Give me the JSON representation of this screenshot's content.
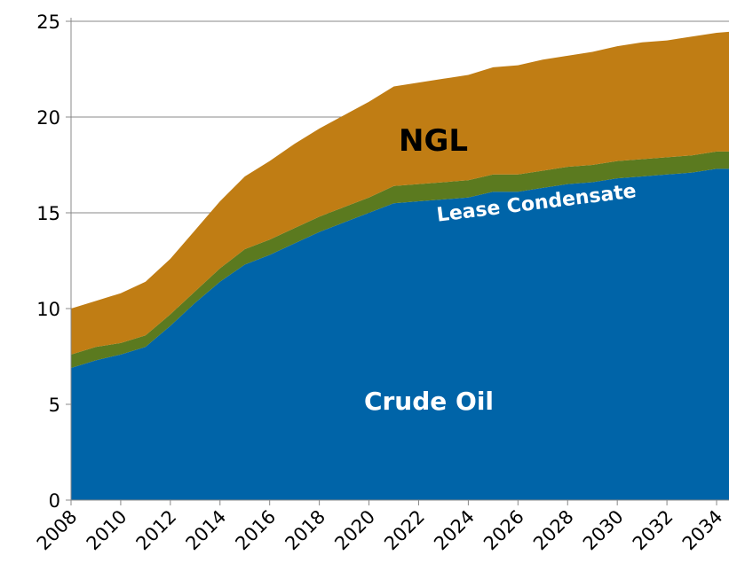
{
  "chart_data": {
    "type": "stacked_area",
    "x": [
      2008,
      2009,
      2010,
      2011,
      2012,
      2013,
      2014,
      2015,
      2016,
      2017,
      2018,
      2019,
      2020,
      2021,
      2022,
      2023,
      2024,
      2025,
      2026,
      2027,
      2028,
      2029,
      2030,
      2031,
      2032,
      2033,
      2034,
      2035
    ],
    "series": [
      {
        "name": "Crude Oil",
        "color": "#0064a8",
        "values": [
          6.9,
          7.3,
          7.6,
          8.0,
          9.1,
          10.3,
          11.4,
          12.3,
          12.8,
          13.4,
          14.0,
          14.5,
          15.0,
          15.5,
          15.6,
          15.7,
          15.8,
          16.1,
          16.1,
          16.3,
          16.5,
          16.6,
          16.8,
          16.9,
          17.0,
          17.1,
          17.3,
          17.3
        ]
      },
      {
        "name": "Lease Condensate",
        "color": "#5b7a1f",
        "values": [
          0.7,
          0.7,
          0.6,
          0.6,
          0.6,
          0.6,
          0.7,
          0.8,
          0.8,
          0.8,
          0.8,
          0.8,
          0.8,
          0.9,
          0.9,
          0.9,
          0.9,
          0.9,
          0.9,
          0.9,
          0.9,
          0.9,
          0.9,
          0.9,
          0.9,
          0.9,
          0.9,
          0.9
        ]
      },
      {
        "name": "NGL",
        "color": "#c07d14",
        "values": [
          2.4,
          2.4,
          2.6,
          2.8,
          2.9,
          3.2,
          3.5,
          3.8,
          4.1,
          4.4,
          4.6,
          4.8,
          5.0,
          5.2,
          5.3,
          5.4,
          5.5,
          5.6,
          5.7,
          5.8,
          5.8,
          5.9,
          6.0,
          6.1,
          6.1,
          6.2,
          6.2,
          6.3
        ]
      }
    ],
    "xlim": [
      2008,
      2034.5
    ],
    "xticks": [
      2008,
      2010,
      2012,
      2014,
      2016,
      2018,
      2020,
      2022,
      2024,
      2026,
      2028,
      2030,
      2032,
      2034
    ],
    "ylim": [
      0,
      25
    ],
    "yticks": [
      0,
      5,
      10,
      15,
      20,
      25
    ],
    "grid": true
  }
}
